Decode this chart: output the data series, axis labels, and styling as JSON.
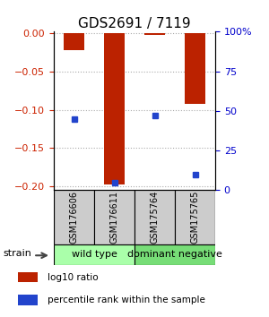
{
  "title": "GDS2691 / 7119",
  "samples": [
    "GSM176606",
    "GSM176611",
    "GSM175764",
    "GSM175765"
  ],
  "log10_ratio": [
    -0.022,
    -0.197,
    -0.002,
    -0.092
  ],
  "percentile_rank": [
    45,
    5,
    47,
    10
  ],
  "bar_color": "#bb2200",
  "marker_color": "#2244cc",
  "ylim_left": [
    -0.205,
    0.002
  ],
  "ylim_right": [
    0,
    100
  ],
  "yticks_left": [
    0,
    -0.05,
    -0.1,
    -0.15,
    -0.2
  ],
  "yticks_right": [
    0,
    25,
    50,
    75,
    100
  ],
  "groups": [
    {
      "label": "wild type",
      "indices": [
        0,
        1
      ],
      "color": "#aaffaa"
    },
    {
      "label": "dominant negative",
      "indices": [
        2,
        3
      ],
      "color": "#77dd77"
    }
  ],
  "group_label_fontsize": 8,
  "sample_label_fontsize": 7,
  "title_fontsize": 11,
  "bar_width": 0.5,
  "legend_red_label": "log10 ratio",
  "legend_blue_label": "percentile rank within the sample",
  "strain_label": "strain",
  "background_color": "#ffffff",
  "left_axis_color": "#cc2200",
  "right_axis_color": "#0000cc",
  "sample_box_color": "#cccccc",
  "grid_color": "#aaaaaa"
}
